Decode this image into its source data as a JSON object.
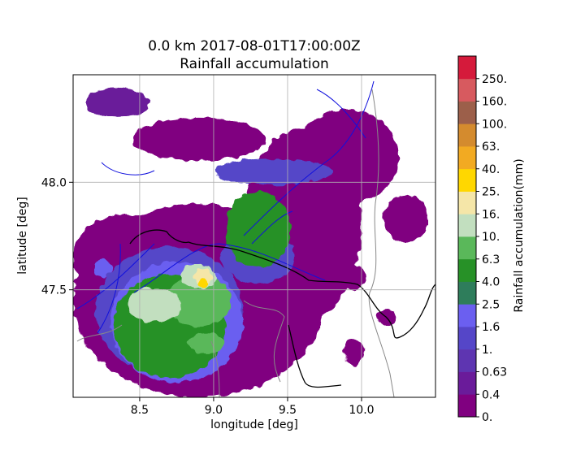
{
  "chart_data": {
    "type": "heatmap",
    "title": "0.0 km 2017-08-01T17:00:00Z",
    "subtitle": "Rainfall accumulation",
    "xlabel": "longitude [deg]",
    "ylabel": "latitude [deg]",
    "xlim": [
      8.05,
      10.5
    ],
    "ylim": [
      47.0,
      48.5
    ],
    "xticks": [
      8.5,
      9.0,
      9.5,
      10.0
    ],
    "xtick_labels": [
      "8.5",
      "9.0",
      "9.5",
      "10.0"
    ],
    "yticks": [
      47.5,
      48.0
    ],
    "ytick_labels": [
      "47.5",
      "48.0"
    ],
    "grid": true,
    "colorbar": {
      "label": "Rainfall accumulation(mm)",
      "levels": [
        "0.",
        "0.4",
        "0.63",
        "1.",
        "1.6",
        "2.5",
        "4.0",
        "6.3",
        "10.",
        "16.",
        "25.",
        "40.",
        "63.",
        "100.",
        "160.",
        "250."
      ],
      "colors": [
        "#800080",
        "#6a1b9a",
        "#5e35b1",
        "#5546c8",
        "#6b5ff0",
        "#2e7d5b",
        "#279127",
        "#5ab85a",
        "#c2dfbf",
        "#f5e6a8",
        "#ffd700",
        "#f2aa22",
        "#d48b2e",
        "#9c5f4a",
        "#d75a5f",
        "#d51a3b"
      ]
    },
    "regions": [
      {
        "level": 1,
        "lon": 8.35,
        "lat": 48.37,
        "rx": 0.22,
        "ry": 0.07
      },
      {
        "level": 0,
        "lon": 8.9,
        "lat": 48.2,
        "rx": 0.45,
        "ry": 0.1
      },
      {
        "level": 0,
        "lon": 9.9,
        "lat": 48.12,
        "rx": 0.35,
        "ry": 0.22
      },
      {
        "level": 0,
        "lon": 10.3,
        "lat": 47.83,
        "rx": 0.15,
        "ry": 0.11
      },
      {
        "level": 0,
        "lon": 9.93,
        "lat": 47.56,
        "rx": 0.1,
        "ry": 0.06
      },
      {
        "level": 0,
        "lon": 10.17,
        "lat": 47.37,
        "rx": 0.06,
        "ry": 0.04
      },
      {
        "level": 0,
        "lon": 9.95,
        "lat": 47.21,
        "rx": 0.07,
        "ry": 0.06
      },
      {
        "level": 0,
        "lon": 8.4,
        "lat": 47.65,
        "rx": 0.35,
        "ry": 0.2
      },
      {
        "level": 0,
        "lon": 8.9,
        "lat": 47.45,
        "rx": 0.85,
        "ry": 0.45
      },
      {
        "level": 0,
        "lon": 9.6,
        "lat": 47.8,
        "rx": 0.4,
        "ry": 0.45
      },
      {
        "level": 3,
        "lon": 9.4,
        "lat": 48.05,
        "rx": 0.4,
        "ry": 0.06
      },
      {
        "level": 3,
        "lon": 8.7,
        "lat": 47.4,
        "rx": 0.5,
        "ry": 0.3
      },
      {
        "level": 3,
        "lon": 9.3,
        "lat": 47.65,
        "rx": 0.25,
        "ry": 0.12
      },
      {
        "level": 4,
        "lon": 8.75,
        "lat": 47.35,
        "rx": 0.45,
        "ry": 0.28
      },
      {
        "level": 6,
        "lon": 8.7,
        "lat": 47.33,
        "rx": 0.38,
        "ry": 0.24
      },
      {
        "level": 6,
        "lon": 9.3,
        "lat": 47.78,
        "rx": 0.22,
        "ry": 0.18
      },
      {
        "level": 7,
        "lon": 8.9,
        "lat": 47.45,
        "rx": 0.22,
        "ry": 0.12
      },
      {
        "level": 8,
        "lon": 8.6,
        "lat": 47.43,
        "rx": 0.18,
        "ry": 0.08
      },
      {
        "level": 8,
        "lon": 8.9,
        "lat": 47.56,
        "rx": 0.12,
        "ry": 0.06
      },
      {
        "level": 9,
        "lon": 8.93,
        "lat": 47.56,
        "rx": 0.06,
        "ry": 0.04
      },
      {
        "level": 10,
        "lon": 8.93,
        "lat": 47.53,
        "rx": 0.03,
        "ry": 0.022
      },
      {
        "level": 4,
        "lon": 8.25,
        "lat": 47.6,
        "rx": 0.06,
        "ry": 0.04
      },
      {
        "level": 7,
        "lon": 8.95,
        "lat": 47.25,
        "rx": 0.12,
        "ry": 0.05
      }
    ]
  }
}
